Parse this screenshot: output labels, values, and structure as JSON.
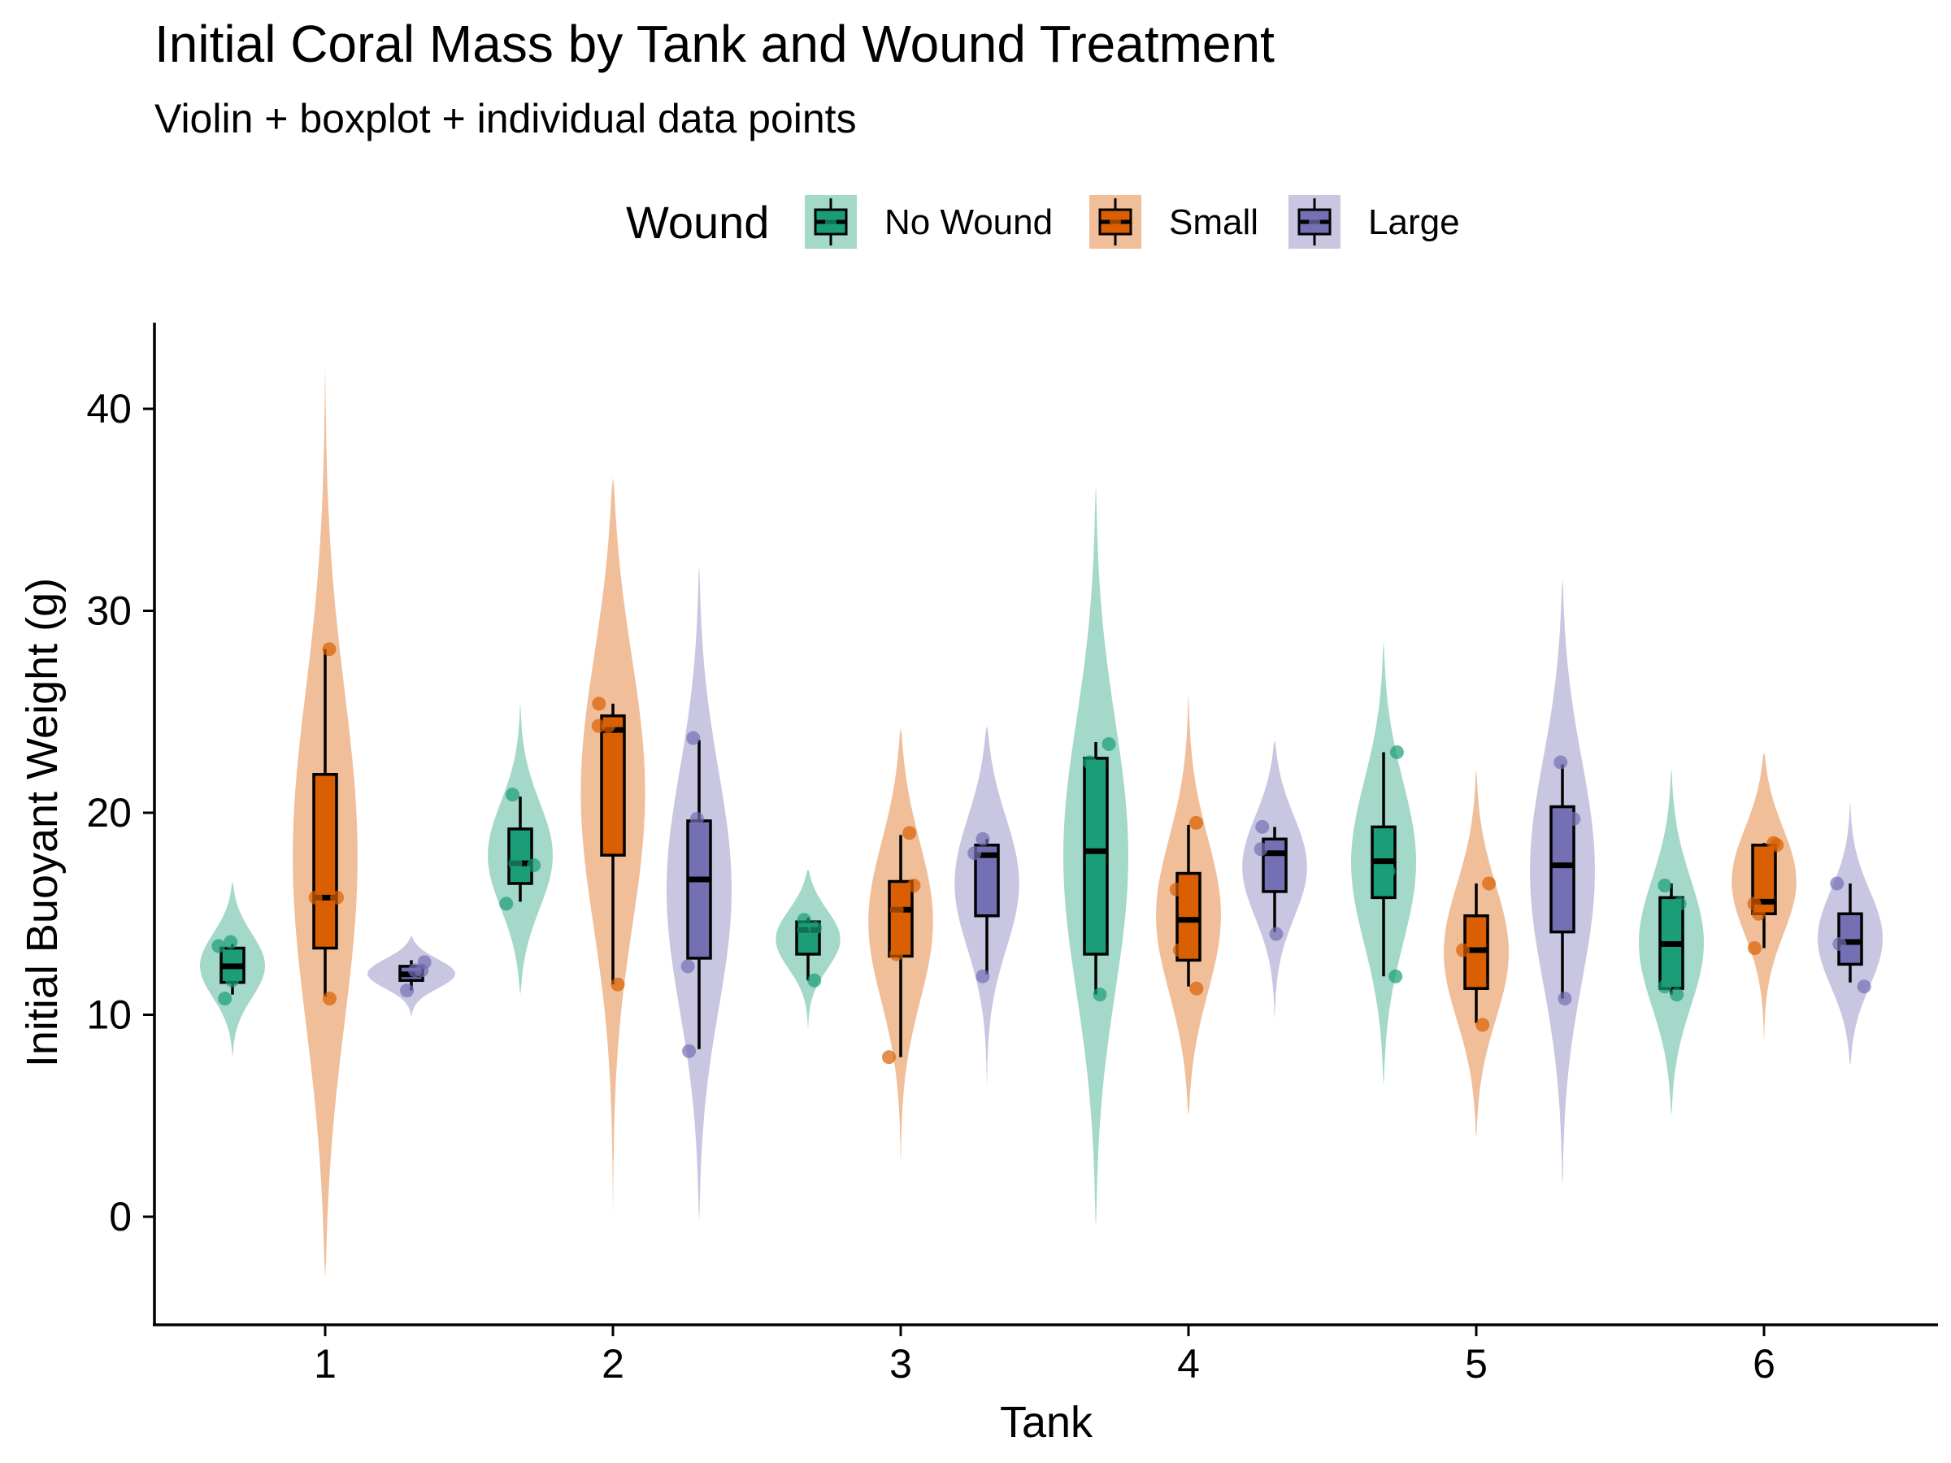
{
  "chart_data": {
    "type": "violin",
    "title": "Initial Coral Mass by Tank and Wound Treatment",
    "subtitle": "Violin + boxplot + individual data points",
    "xlabel": "Tank",
    "ylabel": "Initial Buoyant Weight (g)",
    "categories": [
      "1",
      "2",
      "3",
      "4",
      "5",
      "6"
    ],
    "yticks": [
      0,
      10,
      20,
      30,
      40
    ],
    "ylim": [
      -5.5,
      44
    ],
    "grid": false,
    "legend": {
      "title": "Wound",
      "position": "top",
      "entries": [
        "No Wound",
        "Small",
        "Large"
      ]
    },
    "colors": {
      "No Wound": "#1b9e77",
      "Small": "#d95f02",
      "Large": "#7570b3"
    },
    "series": [
      {
        "name": "No Wound",
        "groups": [
          {
            "tank": "1",
            "min": 11.0,
            "q1": 11.6,
            "median": 12.4,
            "q3": 13.3,
            "max": 13.5,
            "violin_min": 7.9,
            "violin_max": 16.6,
            "points": [
              13.6,
              11.7,
              10.8,
              13.4
            ]
          },
          {
            "tank": "2",
            "min": 15.6,
            "q1": 16.5,
            "median": 17.5,
            "q3": 19.2,
            "max": 20.8,
            "violin_min": 11.0,
            "violin_max": 25.4,
            "points": [
              20.9,
              17.5,
              15.5,
              17.4
            ]
          },
          {
            "tank": "3",
            "min": 11.7,
            "q1": 13.0,
            "median": 14.2,
            "q3": 14.6,
            "max": 14.8,
            "violin_min": 9.2,
            "violin_max": 17.2,
            "points": [
              14.7,
              14.2,
              11.7,
              14.3
            ]
          },
          {
            "tank": "4",
            "min": 11.0,
            "q1": 13.0,
            "median": 18.1,
            "q3": 22.7,
            "max": 23.5,
            "violin_min": -0.5,
            "violin_max": 36.2,
            "points": [
              23.4,
              22.5,
              13.8,
              11.0
            ]
          },
          {
            "tank": "5",
            "min": 11.9,
            "q1": 15.8,
            "median": 17.6,
            "q3": 19.3,
            "max": 23.0,
            "violin_min": 6.5,
            "violin_max": 28.5,
            "points": [
              23.0,
              18.1,
              17.1,
              11.9
            ]
          },
          {
            "tank": "6",
            "min": 11.0,
            "q1": 11.3,
            "median": 13.5,
            "q3": 15.8,
            "max": 16.5,
            "violin_min": 5.0,
            "violin_max": 22.2,
            "points": [
              16.4,
              15.5,
              11.4,
              11.0
            ]
          }
        ]
      },
      {
        "name": "Small",
        "groups": [
          {
            "tank": "1",
            "min": 10.9,
            "q1": 13.3,
            "median": 15.8,
            "q3": 21.9,
            "max": 28.1,
            "violin_min": -3.0,
            "violin_max": 42.0,
            "points": [
              28.1,
              15.8,
              10.8,
              15.8
            ]
          },
          {
            "tank": "2",
            "min": 11.5,
            "q1": 17.9,
            "median": 24.1,
            "q3": 24.8,
            "max": 25.4,
            "violin_min": 0.2,
            "violin_max": 36.6,
            "points": [
              25.4,
              24.3,
              24.3,
              11.5
            ]
          },
          {
            "tank": "3",
            "min": 7.9,
            "q1": 12.9,
            "median": 15.2,
            "q3": 16.6,
            "max": 18.9,
            "violin_min": 2.7,
            "violin_max": 24.2,
            "points": [
              19.0,
              15.2,
              13.0,
              7.9,
              16.4
            ]
          },
          {
            "tank": "4",
            "min": 11.4,
            "q1": 12.7,
            "median": 14.7,
            "q3": 17.0,
            "max": 19.4,
            "violin_min": 5.0,
            "violin_max": 25.9,
            "points": [
              19.5,
              16.2,
              13.2,
              11.3
            ]
          },
          {
            "tank": "5",
            "min": 9.6,
            "q1": 11.3,
            "median": 13.2,
            "q3": 14.9,
            "max": 16.5,
            "violin_min": 3.9,
            "violin_max": 22.2,
            "points": [
              16.5,
              13.2,
              9.5
            ]
          },
          {
            "tank": "6",
            "min": 13.3,
            "q1": 15.0,
            "median": 15.6,
            "q3": 18.4,
            "max": 18.5,
            "violin_min": 8.7,
            "violin_max": 23.0,
            "points": [
              18.5,
              18.4,
              15.5,
              15.0,
              13.3
            ]
          }
        ]
      },
      {
        "name": "Large",
        "groups": [
          {
            "tank": "1",
            "min": 11.2,
            "q1": 11.7,
            "median": 12.0,
            "q3": 12.4,
            "max": 12.7,
            "violin_min": 9.9,
            "violin_max": 13.9,
            "points": [
              12.6,
              12.2,
              11.2,
              12.2
            ]
          },
          {
            "tank": "2",
            "min": 8.3,
            "q1": 12.8,
            "median": 16.7,
            "q3": 19.6,
            "max": 23.6,
            "violin_min": -0.2,
            "violin_max": 32.2,
            "points": [
              23.7,
              19.7,
              14.2,
              12.4,
              8.2
            ]
          },
          {
            "tank": "3",
            "min": 12.0,
            "q1": 14.9,
            "median": 17.9,
            "q3": 18.4,
            "max": 18.7,
            "violin_min": 6.5,
            "violin_max": 24.3,
            "points": [
              18.7,
              18.0,
              11.9
            ]
          },
          {
            "tank": "4",
            "min": 14.1,
            "q1": 16.1,
            "median": 18.0,
            "q3": 18.7,
            "max": 19.3,
            "violin_min": 9.8,
            "violin_max": 23.6,
            "points": [
              19.3,
              18.2,
              14.0
            ]
          },
          {
            "tank": "5",
            "min": 10.8,
            "q1": 14.1,
            "median": 17.4,
            "q3": 20.3,
            "max": 22.4,
            "violin_min": 1.5,
            "violin_max": 31.6,
            "points": [
              22.5,
              19.7,
              15.3,
              10.8
            ]
          },
          {
            "tank": "6",
            "min": 11.6,
            "q1": 12.5,
            "median": 13.6,
            "q3": 15.0,
            "max": 16.5,
            "violin_min": 7.5,
            "violin_max": 20.5,
            "points": [
              16.5,
              13.5,
              11.4
            ]
          }
        ]
      }
    ]
  }
}
